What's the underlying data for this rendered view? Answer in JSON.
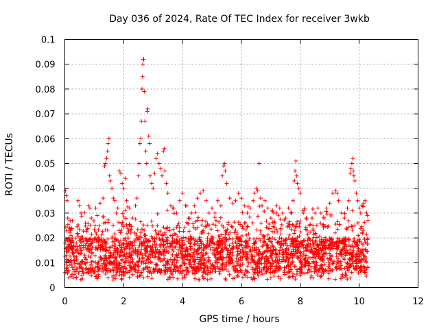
{
  "chart_data": {
    "type": "scatter",
    "title": "Day 036 of 2024, Rate Of TEC Index for receiver 3wkb",
    "xlabel": "GPS time / hours",
    "ylabel": "ROTI / TECUs",
    "xlim": [
      0,
      12
    ],
    "ylim": [
      0,
      0.1
    ],
    "xticks": [
      0,
      2,
      4,
      6,
      8,
      10,
      12
    ],
    "xtick_labels": [
      "0",
      "2",
      "4",
      "6",
      "8",
      "10",
      "12"
    ],
    "yticks": [
      0,
      0.01,
      0.02,
      0.03,
      0.04,
      0.05,
      0.06,
      0.07,
      0.08,
      0.09,
      0.1
    ],
    "ytick_labels": [
      "0",
      "0.01",
      "0.02",
      "0.03",
      "0.04",
      "0.05",
      "0.06",
      "0.07",
      "0.08",
      "0.09",
      "0.1"
    ],
    "grid": true,
    "marker": "+",
    "color": "#ff0000",
    "series": [
      {
        "name": "ROTI",
        "points": [
          [
            0.02,
            0.039
          ],
          [
            0.05,
            0.037
          ],
          [
            0.08,
            0.035
          ],
          [
            0.1,
            0.028
          ],
          [
            0.15,
            0.024
          ],
          [
            0.18,
            0.027
          ],
          [
            0.25,
            0.02
          ],
          [
            0.3,
            0.018
          ],
          [
            0.45,
            0.035
          ],
          [
            0.5,
            0.033
          ],
          [
            0.55,
            0.03
          ],
          [
            0.7,
            0.026
          ],
          [
            0.8,
            0.033
          ],
          [
            0.85,
            0.032
          ],
          [
            0.9,
            0.028
          ],
          [
            1.05,
            0.032
          ],
          [
            1.1,
            0.029
          ],
          [
            1.2,
            0.034
          ],
          [
            1.3,
            0.036
          ],
          [
            1.35,
            0.049
          ],
          [
            1.38,
            0.05
          ],
          [
            1.42,
            0.052
          ],
          [
            1.45,
            0.055
          ],
          [
            1.47,
            0.058
          ],
          [
            1.5,
            0.06
          ],
          [
            1.52,
            0.045
          ],
          [
            1.55,
            0.043
          ],
          [
            1.6,
            0.04
          ],
          [
            1.65,
            0.036
          ],
          [
            1.7,
            0.035
          ],
          [
            1.75,
            0.03
          ],
          [
            1.8,
            0.032
          ],
          [
            1.85,
            0.047
          ],
          [
            1.9,
            0.046
          ],
          [
            1.95,
            0.042
          ],
          [
            2.0,
            0.04
          ],
          [
            2.05,
            0.044
          ],
          [
            2.1,
            0.035
          ],
          [
            2.2,
            0.032
          ],
          [
            2.3,
            0.028
          ],
          [
            2.4,
            0.033
          ],
          [
            2.45,
            0.036
          ],
          [
            2.5,
            0.045
          ],
          [
            2.52,
            0.05
          ],
          [
            2.55,
            0.058
          ],
          [
            2.58,
            0.06
          ],
          [
            2.6,
            0.067
          ],
          [
            2.62,
            0.08
          ],
          [
            2.64,
            0.085
          ],
          [
            2.65,
            0.09
          ],
          [
            2.66,
            0.092
          ],
          [
            2.68,
            0.092
          ],
          [
            2.7,
            0.079
          ],
          [
            2.72,
            0.067
          ],
          [
            2.75,
            0.055
          ],
          [
            2.78,
            0.05
          ],
          [
            2.8,
            0.071
          ],
          [
            2.82,
            0.072
          ],
          [
            2.85,
            0.061
          ],
          [
            2.88,
            0.058
          ],
          [
            2.9,
            0.045
          ],
          [
            2.95,
            0.042
          ],
          [
            3.0,
            0.04
          ],
          [
            3.05,
            0.046
          ],
          [
            3.1,
            0.052
          ],
          [
            3.15,
            0.054
          ],
          [
            3.2,
            0.05
          ],
          [
            3.25,
            0.048
          ],
          [
            3.3,
            0.045
          ],
          [
            3.35,
            0.055
          ],
          [
            3.38,
            0.056
          ],
          [
            3.4,
            0.047
          ],
          [
            3.45,
            0.042
          ],
          [
            3.5,
            0.038
          ],
          [
            3.6,
            0.033
          ],
          [
            3.7,
            0.032
          ],
          [
            3.8,
            0.03
          ],
          [
            3.9,
            0.035
          ],
          [
            4.0,
            0.038
          ],
          [
            4.1,
            0.033
          ],
          [
            4.2,
            0.028
          ],
          [
            4.3,
            0.03
          ],
          [
            4.4,
            0.033
          ],
          [
            4.5,
            0.036
          ],
          [
            4.6,
            0.038
          ],
          [
            4.7,
            0.039
          ],
          [
            4.8,
            0.035
          ],
          [
            4.9,
            0.03
          ],
          [
            5.0,
            0.032
          ],
          [
            5.1,
            0.03
          ],
          [
            5.2,
            0.035
          ],
          [
            5.3,
            0.033
          ],
          [
            5.35,
            0.045
          ],
          [
            5.4,
            0.049
          ],
          [
            5.42,
            0.05
          ],
          [
            5.45,
            0.047
          ],
          [
            5.5,
            0.042
          ],
          [
            5.6,
            0.036
          ],
          [
            5.7,
            0.034
          ],
          [
            5.8,
            0.035
          ],
          [
            5.9,
            0.038
          ],
          [
            6.0,
            0.036
          ],
          [
            6.1,
            0.033
          ],
          [
            6.2,
            0.03
          ],
          [
            6.3,
            0.032
          ],
          [
            6.4,
            0.035
          ],
          [
            6.45,
            0.038
          ],
          [
            6.5,
            0.04
          ],
          [
            6.55,
            0.039
          ],
          [
            6.6,
            0.05
          ],
          [
            6.65,
            0.036
          ],
          [
            6.7,
            0.033
          ],
          [
            6.8,
            0.035
          ],
          [
            6.9,
            0.032
          ],
          [
            7.0,
            0.028
          ],
          [
            7.1,
            0.03
          ],
          [
            7.2,
            0.033
          ],
          [
            7.3,
            0.032
          ],
          [
            7.4,
            0.03
          ],
          [
            7.5,
            0.028
          ],
          [
            7.6,
            0.032
          ],
          [
            7.7,
            0.03
          ],
          [
            7.75,
            0.035
          ],
          [
            7.8,
            0.043
          ],
          [
            7.82,
            0.047
          ],
          [
            7.85,
            0.051
          ],
          [
            7.88,
            0.045
          ],
          [
            7.9,
            0.042
          ],
          [
            7.95,
            0.04
          ],
          [
            8.0,
            0.038
          ],
          [
            8.1,
            0.03
          ],
          [
            8.2,
            0.028
          ],
          [
            8.3,
            0.025
          ],
          [
            8.4,
            0.028
          ],
          [
            8.5,
            0.03
          ],
          [
            8.6,
            0.032
          ],
          [
            8.7,
            0.03
          ],
          [
            8.8,
            0.028
          ],
          [
            8.9,
            0.032
          ],
          [
            9.0,
            0.034
          ],
          [
            9.1,
            0.038
          ],
          [
            9.2,
            0.039
          ],
          [
            9.25,
            0.038
          ],
          [
            9.3,
            0.035
          ],
          [
            9.4,
            0.03
          ],
          [
            9.5,
            0.028
          ],
          [
            9.6,
            0.032
          ],
          [
            9.65,
            0.035
          ],
          [
            9.7,
            0.046
          ],
          [
            9.72,
            0.048
          ],
          [
            9.75,
            0.05
          ],
          [
            9.78,
            0.052
          ],
          [
            9.8,
            0.047
          ],
          [
            9.82,
            0.045
          ],
          [
            9.85,
            0.043
          ],
          [
            9.9,
            0.038
          ],
          [
            9.95,
            0.035
          ],
          [
            10.0,
            0.032
          ],
          [
            10.05,
            0.03
          ],
          [
            10.1,
            0.033
          ],
          [
            10.15,
            0.034
          ],
          [
            10.2,
            0.035
          ],
          [
            10.25,
            0.03
          ],
          [
            10.28,
            0.029
          ],
          [
            10.3,
            0.027
          ]
        ]
      }
    ]
  }
}
